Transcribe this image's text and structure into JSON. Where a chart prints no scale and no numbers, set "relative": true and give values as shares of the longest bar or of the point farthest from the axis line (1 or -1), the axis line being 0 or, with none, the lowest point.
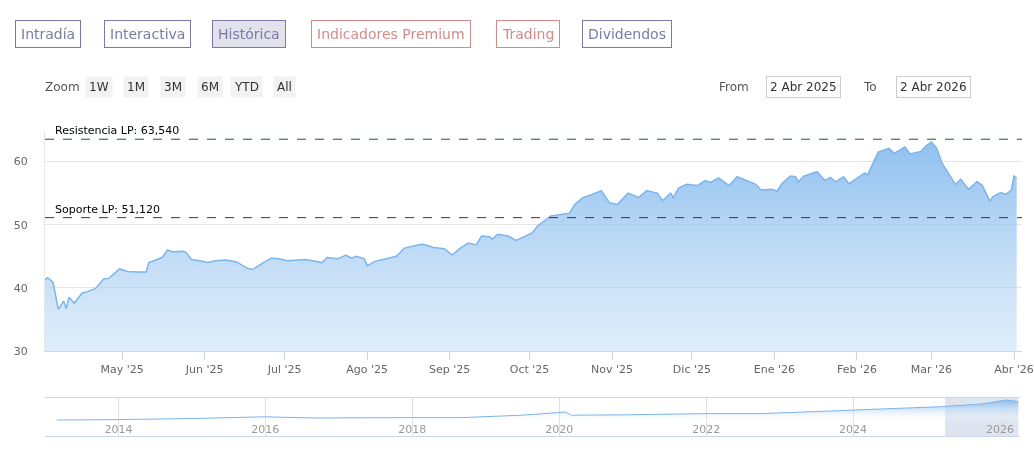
{
  "chart_data": [
    {
      "type": "area",
      "color": "#7cb5ec",
      "annotations": [
        "Intradía",
        "Interactiva",
        "Histórica",
        "Indicadores Premium",
        "Trading",
        "Dividendos",
        "Zoom",
        "1W",
        "1M",
        "3M",
        "6M",
        "YTD",
        "All",
        "From",
        "2 Abr 2025",
        "To",
        "2 Abr 2026"
      ],
      "x": [
        "2025-04-02",
        "2025-04-03",
        "2025-04-05",
        "2025-04-07",
        "2025-04-09",
        "2025-04-10",
        "2025-04-11",
        "2025-04-13",
        "2025-04-16",
        "2025-04-18",
        "2025-04-21",
        "2025-04-24",
        "2025-04-26",
        "2025-04-30",
        "2025-05-03",
        "2025-05-07",
        "2025-05-10",
        "2025-05-11",
        "2025-05-16",
        "2025-05-18",
        "2025-05-20",
        "2025-05-24",
        "2025-05-25",
        "2025-05-27",
        "2025-05-30",
        "2025-06-02",
        "2025-06-05",
        "2025-06-09",
        "2025-06-13",
        "2025-06-17",
        "2025-06-19",
        "2025-06-23",
        "2025-06-26",
        "2025-06-29",
        "2025-07-02",
        "2025-07-09",
        "2025-07-15",
        "2025-07-17",
        "2025-07-21",
        "2025-07-24",
        "2025-07-26",
        "2025-07-28",
        "2025-07-31",
        "2025-08-01",
        "2025-08-04",
        "2025-08-07",
        "2025-08-12",
        "2025-08-15",
        "2025-08-20",
        "2025-08-22",
        "2025-08-26",
        "2025-08-30",
        "2025-09-02",
        "2025-09-05",
        "2025-09-08",
        "2025-09-11",
        "2025-09-13",
        "2025-09-16",
        "2025-09-17",
        "2025-09-19",
        "2025-09-23",
        "2025-09-26",
        "2025-10-02",
        "2025-10-04",
        "2025-10-09",
        "2025-10-16",
        "2025-10-18",
        "2025-10-21",
        "2025-10-24",
        "2025-10-28",
        "2025-10-31",
        "2025-11-03",
        "2025-11-07",
        "2025-11-11",
        "2025-11-14",
        "2025-11-18",
        "2025-11-20",
        "2025-11-23",
        "2025-11-24",
        "2025-11-26",
        "2025-11-29",
        "2025-12-03",
        "2025-12-06",
        "2025-12-08",
        "2025-12-11",
        "2025-12-15",
        "2025-12-18",
        "2025-12-25",
        "2025-12-27",
        "2025-12-31",
        "2026-01-02",
        "2026-01-04",
        "2026-01-07",
        "2026-01-09",
        "2026-01-10",
        "2026-01-12",
        "2026-01-17",
        "2026-01-20",
        "2026-01-22",
        "2026-01-24",
        "2026-01-27",
        "2026-01-29",
        "2026-02-04",
        "2026-02-05",
        "2026-02-09",
        "2026-02-13",
        "2026-02-15",
        "2026-02-19",
        "2026-02-21",
        "2026-02-25",
        "2026-02-27",
        "2026-03-01",
        "2026-03-03",
        "2026-03-05",
        "2026-03-10",
        "2026-03-12",
        "2026-03-15",
        "2026-03-18",
        "2026-03-20",
        "2026-03-23",
        "2026-03-24",
        "2026-03-27",
        "2026-03-29",
        "2026-03-31",
        "2026-04-01",
        "2026-04-02"
      ],
      "values": [
        41.3,
        41.6,
        40.9,
        36.6,
        37.9,
        36.7,
        38.5,
        37.6,
        39.2,
        39.4,
        39.9,
        41.4,
        41.5,
        43.0,
        42.6,
        42.5,
        42.5,
        44.0,
        44.8,
        46.0,
        45.7,
        45.8,
        45.6,
        44.5,
        44.3,
        44.0,
        44.3,
        44.4,
        44.1,
        43.1,
        42.9,
        44.0,
        44.7,
        44.6,
        44.3,
        44.5,
        44.0,
        44.8,
        44.6,
        45.2,
        44.7,
        45.0,
        44.6,
        43.5,
        44.2,
        44.5,
        45.0,
        46.3,
        46.8,
        46.9,
        46.4,
        46.2,
        45.2,
        46.3,
        47.1,
        46.8,
        48.2,
        48.1,
        47.7,
        48.5,
        48.2,
        47.5,
        48.7,
        49.8,
        51.4,
        51.8,
        53.2,
        54.3,
        54.7,
        55.4,
        53.5,
        53.2,
        55.0,
        54.3,
        55.4,
        55.0,
        53.8,
        55.0,
        54.3,
        55.8,
        56.4,
        56.2,
        57.0,
        56.7,
        57.4,
        56.2,
        57.6,
        56.4,
        55.5,
        55.6,
        55.3,
        56.6,
        57.7,
        57.6,
        56.8,
        57.7,
        58.4,
        57.0,
        57.5,
        56.8,
        57.6,
        56.5,
        58.2,
        57.9,
        61.5,
        62.1,
        61.3,
        62.3,
        61.2,
        61.6,
        62.5,
        63.1,
        62.1,
        59.7,
        56.4,
        57.2,
        55.6,
        56.8,
        56.3,
        53.7,
        54.4,
        55.1,
        54.8,
        55.5,
        57.7,
        57.4
      ],
      "xlim": [
        "2025-04-02",
        "2026-04-04"
      ],
      "ylim": [
        30,
        65
      ],
      "yticks": [
        30,
        40,
        50,
        60
      ],
      "xticks": [
        {
          "value": "2025-05-01",
          "label": "May '25"
        },
        {
          "value": "2025-06-01",
          "label": "Jun '25"
        },
        {
          "value": "2025-07-01",
          "label": "Jul '25"
        },
        {
          "value": "2025-08-01",
          "label": "Ago '25"
        },
        {
          "value": "2025-09-01",
          "label": "Sep '25"
        },
        {
          "value": "2025-10-01",
          "label": "Oct '25"
        },
        {
          "value": "2025-11-01",
          "label": "Nov '25"
        },
        {
          "value": "2025-12-01",
          "label": "Dic '25"
        },
        {
          "value": "2026-01-01",
          "label": "Ene '26"
        },
        {
          "value": "2026-02-01",
          "label": "Feb '26"
        },
        {
          "value": "2026-03-01",
          "label": "Mar '26"
        },
        {
          "value": "2026-04-01",
          "label": "Abr '26"
        }
      ],
      "grid": "y",
      "ref_lines": [
        {
          "axis": "y",
          "value": 63.54,
          "label": "Resistencia LP: 63,540",
          "color": "#1e5a2a",
          "line_style": "dashed"
        },
        {
          "axis": "y",
          "value": 51.12,
          "label": "Soporte LP: 51,120",
          "color": "#7a1a2a",
          "line_style": "dashed"
        }
      ]
    },
    {
      "type": "area",
      "color": "#7cb5ec",
      "relative": true,
      "grid": "x",
      "x": [
        "2013-03",
        "2014-01",
        "2015-02",
        "2016-01",
        "2016-09",
        "2018-01",
        "2018-09",
        "2019-07",
        "2020-02",
        "2020-03",
        "2020-12",
        "2022-01",
        "2022-10",
        "2023-12",
        "2024-03",
        "2025-03",
        "2025-10",
        "2026-02",
        "2026-04"
      ],
      "values": [
        0,
        0.02,
        0.08,
        0.16,
        0.1,
        0.12,
        0.12,
        0.24,
        0.4,
        0.24,
        0.26,
        0.32,
        0.32,
        0.48,
        0.52,
        0.66,
        0.8,
        1.0,
        0.92
      ],
      "xlim": [
        "2013-01-01",
        "2026-04-10"
      ],
      "xticks": [
        {
          "value": "2014-01-01",
          "label": "2014"
        },
        {
          "value": "2016-01-01",
          "label": "2016"
        },
        {
          "value": "2018-01-01",
          "label": "2018"
        },
        {
          "value": "2020-01-01",
          "label": "2020"
        },
        {
          "value": "2022-01-01",
          "label": "2022"
        },
        {
          "value": "2024-01-01",
          "label": "2024"
        },
        {
          "value": "2026-01-01",
          "label": "2026"
        }
      ],
      "tick_labels": "x",
      "bands": [
        {
          "axis": "x",
          "from": "2025-04-02",
          "to": "2026-04-02",
          "color": "#c8d4e8"
        }
      ]
    }
  ]
}
